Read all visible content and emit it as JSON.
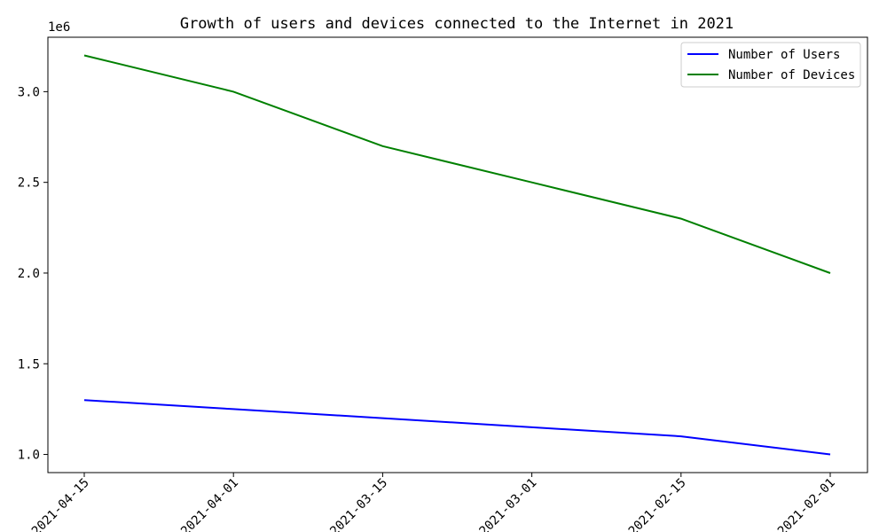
{
  "chart_data": {
    "type": "line",
    "title": "Growth of users and devices connected to the Internet in 2021",
    "xlabel": "",
    "ylabel": "",
    "x": [
      "2021-04-15",
      "2021-04-01",
      "2021-03-15",
      "2021-03-01",
      "2021-02-15",
      "2021-02-01"
    ],
    "series": [
      {
        "name": "Number of Users",
        "color": "#0000ff",
        "values": [
          1300000,
          1250000,
          1200000,
          1150000,
          1100000,
          1000000
        ]
      },
      {
        "name": "Number of Devices",
        "color": "#008000",
        "values": [
          3200000,
          3000000,
          2700000,
          2500000,
          2300000,
          2000000
        ]
      }
    ],
    "y_ticks": [
      1.0,
      1.5,
      2.0,
      2.5,
      3.0
    ],
    "y_tick_labels": [
      "1.0",
      "1.5",
      "2.0",
      "2.5",
      "3.0"
    ],
    "y_scale_label": "1e6",
    "ylim": [
      900000,
      3300000
    ],
    "legend_position": "top-right",
    "grid": false
  }
}
